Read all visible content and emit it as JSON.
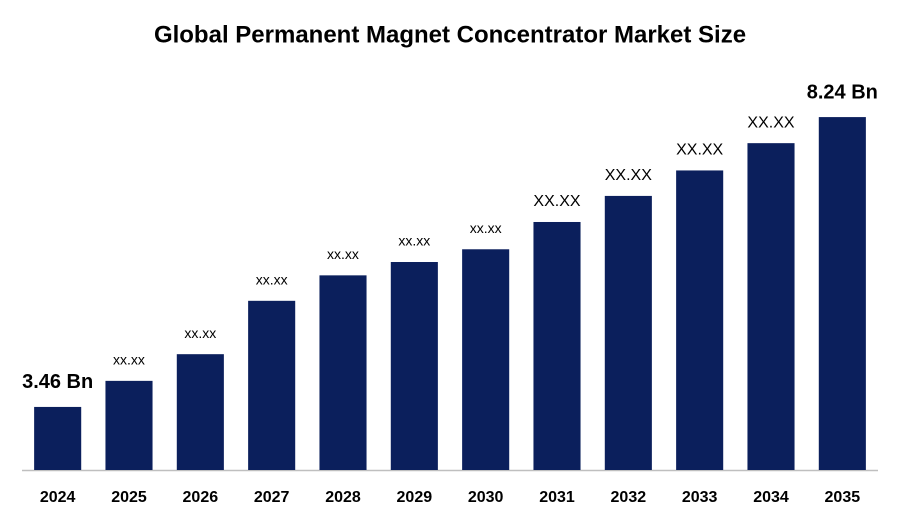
{
  "chart_data": {
    "type": "bar",
    "title": "Global Permanent Magnet Concentrator Market Size",
    "categories": [
      "2024",
      "2025",
      "2026",
      "2027",
      "2028",
      "2029",
      "2030",
      "2031",
      "2032",
      "2033",
      "2034",
      "2035"
    ],
    "values": [
      3.46,
      3.89,
      4.33,
      5.21,
      5.63,
      5.85,
      6.06,
      6.51,
      6.94,
      7.36,
      7.81,
      8.24
    ],
    "value_labels": [
      "3.46 Bn",
      "xx.xx",
      "xx.xx",
      "xx.xx",
      "xx.xx",
      "xx.xx",
      "xx.xx",
      "XX.XX",
      "XX.XX",
      "XX.XX",
      "XX.XX",
      "8.24 Bn"
    ],
    "color": "#0b1f5c",
    "ylim": [
      2.42,
      9
    ]
  }
}
